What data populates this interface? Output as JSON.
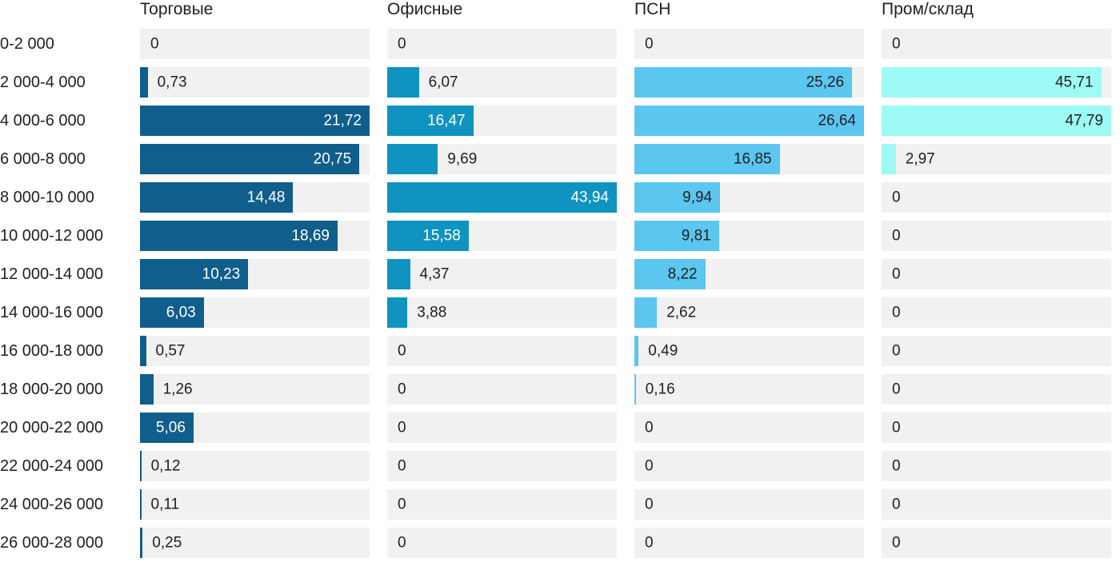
{
  "chart_data": {
    "type": "bar",
    "orientation": "horizontal",
    "title": "",
    "xlabel": "",
    "ylabel": "",
    "grid": false,
    "legend_position": "column-headers",
    "scaling": "per-series-max",
    "value_format": "decimal-comma-2dp",
    "track_color": "#f1f1f2",
    "text_color": "#1f1f1f",
    "categories": [
      "0-2 000",
      "2 000-4 000",
      "4 000-6 000",
      "6 000-8 000",
      "8 000-10 000",
      "10 000-12 000",
      "12 000-14 000",
      "14 000-16 000",
      "16 000-18 000",
      "18 000-20 000",
      "20 000-22 000",
      "22 000-24 000",
      "24 000-26 000",
      "26 000-28 000"
    ],
    "series": [
      {
        "name": "Торговые",
        "color": "#0f5e8c",
        "label_inside_color": "#ffffff",
        "values": [
          0,
          0.73,
          21.72,
          20.75,
          14.48,
          18.69,
          10.23,
          6.03,
          0.57,
          1.26,
          5.06,
          0.12,
          0.11,
          0.25
        ]
      },
      {
        "name": "Офисные",
        "color": "#0f93c0",
        "label_inside_color": "#ffffff",
        "values": [
          0,
          6.07,
          16.47,
          9.69,
          43.94,
          15.58,
          4.37,
          3.88,
          0,
          0,
          0,
          0,
          0,
          0
        ]
      },
      {
        "name": "ПСН",
        "color": "#5bc6f0",
        "label_inside_color": "#1f1f1f",
        "values": [
          0,
          25.26,
          26.64,
          16.85,
          9.94,
          9.81,
          8.22,
          2.62,
          0.49,
          0.16,
          0,
          0,
          0,
          0
        ]
      },
      {
        "name": "Пром/склад",
        "color": "#9efaf4",
        "label_inside_color": "#1f1f1f",
        "values": [
          0,
          45.71,
          47.79,
          2.97,
          0,
          0,
          0,
          0,
          0,
          0,
          0,
          0,
          0,
          0
        ]
      }
    ]
  }
}
